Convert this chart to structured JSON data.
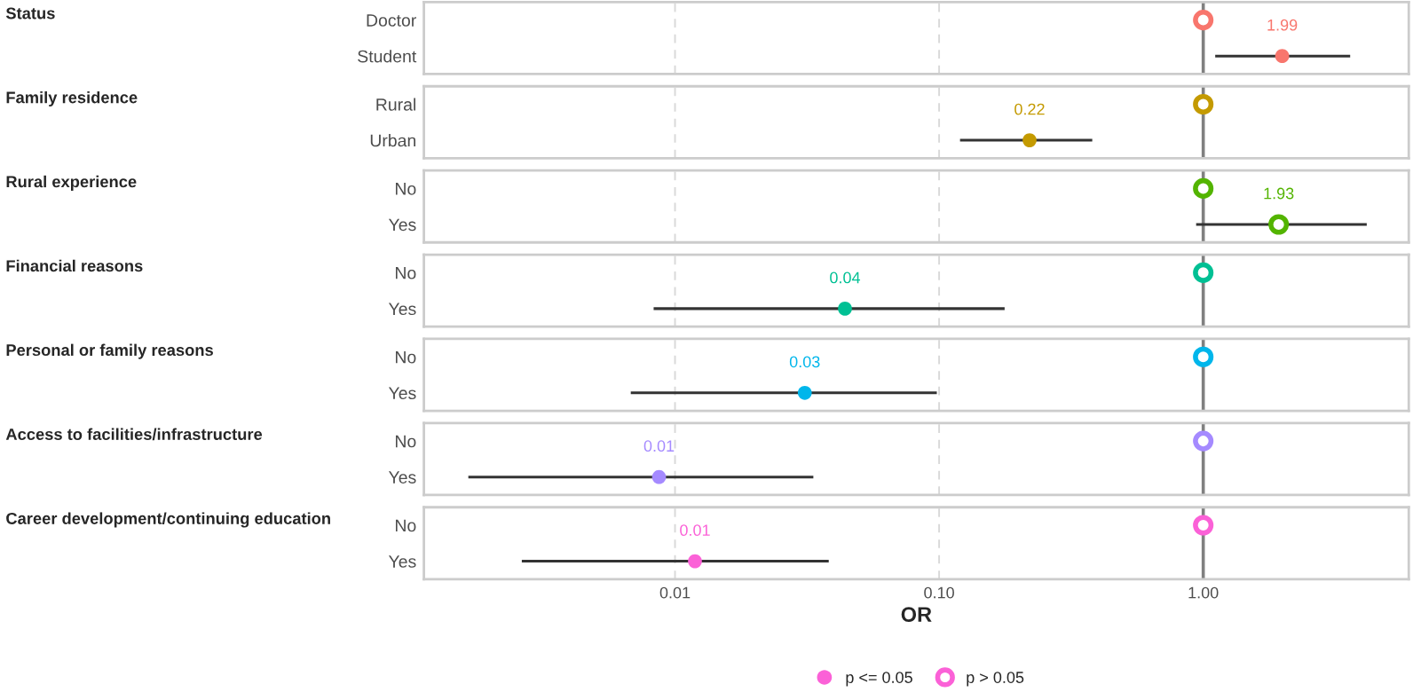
{
  "chart_data": [
    {
      "type": "scatter",
      "orientation": "horizontal",
      "ylabel": "Status",
      "categories": [
        "Doctor",
        "Student"
      ],
      "log": "x",
      "xlim": [
        0.00112,
        6.0
      ],
      "xticks": [
        0.01,
        0.1,
        1
      ],
      "grid": "x",
      "tick_labels": "y",
      "ref_lines": [
        {
          "axis": "x",
          "value": 1,
          "color": "#808080"
        }
      ],
      "series": [
        {
          "color": "#f8766d",
          "values": [
            1,
            null
          ]
        },
        {
          "color": "#f8766d",
          "values": [
            null,
            1.99
          ],
          "errors": [
            null,
            [
              1.11,
              3.6
            ]
          ],
          "value_labels": [
            null,
            "1.99"
          ]
        }
      ]
    },
    {
      "type": "scatter",
      "orientation": "horizontal",
      "ylabel": "Family residence",
      "categories": [
        "Rural",
        "Urban"
      ],
      "log": "x",
      "xlim": [
        0.00112,
        6.0
      ],
      "xticks": [
        0.01,
        0.1,
        1
      ],
      "grid": "x",
      "tick_labels": "y",
      "ref_lines": [
        {
          "axis": "x",
          "value": 1,
          "color": "#808080"
        }
      ],
      "series": [
        {
          "color": "#c49a00",
          "values": [
            1,
            null
          ]
        },
        {
          "color": "#c49a00",
          "values": [
            null,
            0.22
          ],
          "errors": [
            null,
            [
              0.12,
              0.38
            ]
          ],
          "value_labels": [
            null,
            "0.22"
          ]
        }
      ]
    },
    {
      "type": "scatter",
      "orientation": "horizontal",
      "ylabel": "Rural experience",
      "categories": [
        "No",
        "Yes"
      ],
      "log": "x",
      "xlim": [
        0.00112,
        6.0
      ],
      "xticks": [
        0.01,
        0.1,
        1
      ],
      "grid": "x",
      "tick_labels": "y",
      "ref_lines": [
        {
          "axis": "x",
          "value": 1,
          "color": "#808080"
        }
      ],
      "series": [
        {
          "color": "#53b400",
          "values": [
            1,
            1.93
          ],
          "errors": [
            null,
            [
              0.94,
              4.16
            ]
          ],
          "value_labels": [
            null,
            "1.93"
          ]
        }
      ]
    },
    {
      "type": "scatter",
      "orientation": "horizontal",
      "ylabel": "Financial reasons",
      "categories": [
        "No",
        "Yes"
      ],
      "log": "x",
      "xlim": [
        0.00112,
        6.0
      ],
      "xticks": [
        0.01,
        0.1,
        1
      ],
      "grid": "x",
      "tick_labels": "y",
      "ref_lines": [
        {
          "axis": "x",
          "value": 1,
          "color": "#808080"
        }
      ],
      "series": [
        {
          "color": "#00c094",
          "values": [
            1,
            null
          ]
        },
        {
          "color": "#00c094",
          "values": [
            null,
            0.044
          ],
          "errors": [
            null,
            [
              0.0083,
              0.177
            ]
          ],
          "value_labels": [
            null,
            "0.04"
          ]
        }
      ]
    },
    {
      "type": "scatter",
      "orientation": "horizontal",
      "ylabel": "Personal or family reasons",
      "categories": [
        "No",
        "Yes"
      ],
      "log": "x",
      "xlim": [
        0.00112,
        6.0
      ],
      "xticks": [
        0.01,
        0.1,
        1
      ],
      "grid": "x",
      "tick_labels": "y",
      "ref_lines": [
        {
          "axis": "x",
          "value": 1,
          "color": "#808080"
        }
      ],
      "series": [
        {
          "color": "#00b6eb",
          "values": [
            1,
            null
          ]
        },
        {
          "color": "#00b6eb",
          "values": [
            null,
            0.031
          ],
          "errors": [
            null,
            [
              0.0068,
              0.098
            ]
          ],
          "value_labels": [
            null,
            "0.03"
          ]
        }
      ]
    },
    {
      "type": "scatter",
      "orientation": "horizontal",
      "ylabel": "Access to facilities/infrastructure",
      "categories": [
        "No",
        "Yes"
      ],
      "log": "x",
      "xlim": [
        0.00112,
        6.0
      ],
      "xticks": [
        0.01,
        0.1,
        1
      ],
      "grid": "x",
      "tick_labels": "y",
      "ref_lines": [
        {
          "axis": "x",
          "value": 1,
          "color": "#808080"
        }
      ],
      "series": [
        {
          "color": "#a58aff",
          "values": [
            1,
            null
          ]
        },
        {
          "color": "#a58aff",
          "values": [
            null,
            0.0087
          ],
          "errors": [
            null,
            [
              0.00165,
              0.0334
            ]
          ],
          "value_labels": [
            null,
            "0.01"
          ]
        }
      ]
    },
    {
      "type": "scatter",
      "orientation": "horizontal",
      "ylabel": "Career development/continuing education",
      "categories": [
        "No",
        "Yes"
      ],
      "log": "x",
      "xlim": [
        0.00112,
        6.0
      ],
      "xticks": [
        {
          "value": 0.01,
          "label": "0.01"
        },
        {
          "value": 0.1,
          "label": "0.10"
        },
        {
          "value": 1,
          "label": "1.00"
        }
      ],
      "grid": "x",
      "xlabel": "OR",
      "legend": "bottom",
      "ref_lines": [
        {
          "axis": "x",
          "value": 1,
          "color": "#808080"
        }
      ],
      "series": [
        {
          "name": "p > 0.05",
          "color": "#fb61d7",
          "values": [
            1,
            null
          ]
        },
        {
          "name": "p <= 0.05",
          "color": "#fb61d7",
          "values": [
            null,
            0.0119
          ],
          "errors": [
            null,
            [
              0.00263,
              0.0382
            ]
          ],
          "value_labels": [
            null,
            "0.01"
          ]
        }
      ]
    }
  ]
}
